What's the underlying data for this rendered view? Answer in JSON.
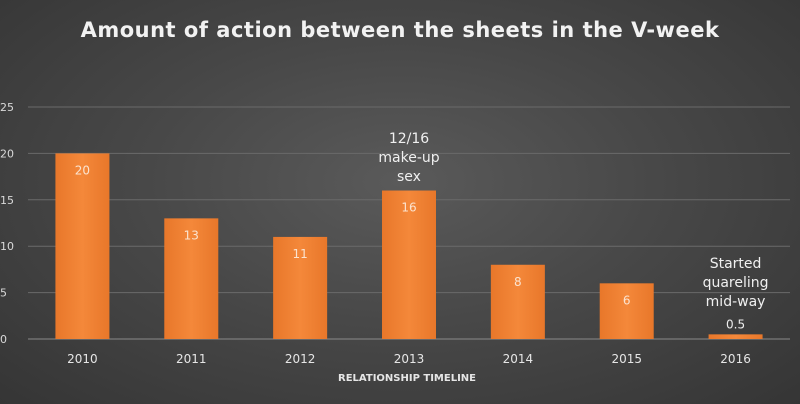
{
  "chart_data": {
    "type": "bar",
    "title": "Amount of action between the sheets in the V-week",
    "xlabel": "RELATIONSHIP TIMELINE",
    "ylabel": "",
    "categories": [
      "2010",
      "2011",
      "2012",
      "2013",
      "2014",
      "2015",
      "2016"
    ],
    "values": [
      20,
      13,
      11,
      16,
      8,
      6,
      0.5
    ],
    "data_labels": [
      "20",
      "13",
      "11",
      "16",
      "8",
      "6",
      "0.5"
    ],
    "ylim": [
      0,
      25
    ],
    "yticks": [
      0,
      5,
      10,
      15,
      20,
      25
    ],
    "grid": true,
    "bar_color": "#f07f2e",
    "annotations": [
      {
        "category": "2013",
        "text": "12/16\nmake-up\nsex"
      },
      {
        "category": "2016",
        "text": "Started\nquareling\nmid-way"
      }
    ]
  }
}
